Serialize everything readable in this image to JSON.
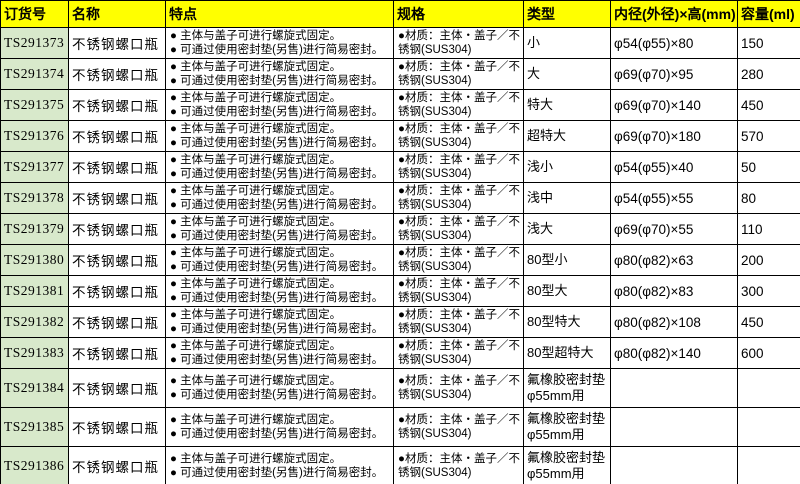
{
  "table": {
    "headers": [
      "订货号",
      "名称",
      "特点",
      "规格",
      "类型",
      "内径(外径)×高(mm)",
      "容量(ml)"
    ],
    "colors": {
      "header_bg": "#FFFF00",
      "order_column_bg": "#D8E9CB",
      "border": "#000000",
      "text": "#000000"
    },
    "rows": [
      {
        "order_no": "TS291373",
        "name": "不锈钢螺口瓶",
        "features": [
          "● 主体与盖子可进行螺旋式固定。",
          "● 可通过使用密封垫(另售)进行简易密封。"
        ],
        "spec": "●材质：主体・盖子／不锈钢(SUS304)",
        "type": "小",
        "dimensions": "φ54(φ55)×80",
        "capacity": "150"
      },
      {
        "order_no": "TS291374",
        "name": "不锈钢螺口瓶",
        "features": [
          "● 主体与盖子可进行螺旋式固定。",
          "● 可通过使用密封垫(另售)进行简易密封。"
        ],
        "spec": "●材质：主体・盖子／不锈钢(SUS304)",
        "type": "大",
        "dimensions": "φ69(φ70)×95",
        "capacity": "280"
      },
      {
        "order_no": "TS291375",
        "name": "不锈钢螺口瓶",
        "features": [
          "● 主体与盖子可进行螺旋式固定。",
          "● 可通过使用密封垫(另售)进行简易密封。"
        ],
        "spec": "●材质：主体・盖子／不锈钢(SUS304)",
        "type": "特大",
        "dimensions": "φ69(φ70)×140",
        "capacity": "450"
      },
      {
        "order_no": "TS291376",
        "name": "不锈钢螺口瓶",
        "features": [
          "● 主体与盖子可进行螺旋式固定。",
          "● 可通过使用密封垫(另售)进行简易密封。"
        ],
        "spec": "●材质：主体・盖子／不锈钢(SUS304)",
        "type": "超特大",
        "dimensions": "φ69(φ70)×180",
        "capacity": "570"
      },
      {
        "order_no": "TS291377",
        "name": "不锈钢螺口瓶",
        "features": [
          "● 主体与盖子可进行螺旋式固定。",
          "● 可通过使用密封垫(另售)进行简易密封。"
        ],
        "spec": "●材质：主体・盖子／不锈钢(SUS304)",
        "type": "浅小",
        "dimensions": "φ54(φ55)×40",
        "capacity": "50"
      },
      {
        "order_no": "TS291378",
        "name": "不锈钢螺口瓶",
        "features": [
          "● 主体与盖子可进行螺旋式固定。",
          "● 可通过使用密封垫(另售)进行简易密封。"
        ],
        "spec": "●材质：主体・盖子／不锈钢(SUS304)",
        "type": "浅中",
        "dimensions": "φ54(φ55)×55",
        "capacity": "80"
      },
      {
        "order_no": "TS291379",
        "name": "不锈钢螺口瓶",
        "features": [
          "● 主体与盖子可进行螺旋式固定。",
          "● 可通过使用密封垫(另售)进行简易密封。"
        ],
        "spec": "●材质：主体・盖子／不锈钢(SUS304)",
        "type": "浅大",
        "dimensions": "φ69(φ70)×55",
        "capacity": "110"
      },
      {
        "order_no": "TS291380",
        "name": "不锈钢螺口瓶",
        "features": [
          "● 主体与盖子可进行螺旋式固定。",
          "● 可通过使用密封垫(另售)进行简易密封。"
        ],
        "spec": "●材质：主体・盖子／不锈钢(SUS304)",
        "type": "80型小",
        "dimensions": "φ80(φ82)×63",
        "capacity": "200"
      },
      {
        "order_no": "TS291381",
        "name": "不锈钢螺口瓶",
        "features": [
          "● 主体与盖子可进行螺旋式固定。",
          "● 可通过使用密封垫(另售)进行简易密封。"
        ],
        "spec": "●材质：主体・盖子／不锈钢(SUS304)",
        "type": "80型大",
        "dimensions": "φ80(φ82)×83",
        "capacity": "300"
      },
      {
        "order_no": "TS291382",
        "name": "不锈钢螺口瓶",
        "features": [
          "● 主体与盖子可进行螺旋式固定。",
          "● 可通过使用密封垫(另售)进行简易密封。"
        ],
        "spec": "●材质：主体・盖子／不锈钢(SUS304)",
        "type": "80型特大",
        "dimensions": "φ80(φ82)×108",
        "capacity": "450"
      },
      {
        "order_no": "TS291383",
        "name": "不锈钢螺口瓶",
        "features": [
          "● 主体与盖子可进行螺旋式固定。",
          "● 可通过使用密封垫(另售)进行简易密封。"
        ],
        "spec": "●材质：主体・盖子／不锈钢(SUS304)",
        "type": "80型超特大",
        "dimensions": "φ80(φ82)×140",
        "capacity": "600"
      },
      {
        "order_no": "TS291384",
        "name": "不锈钢螺口瓶",
        "features": [
          "● 主体与盖子可进行螺旋式固定。",
          "● 可通过使用密封垫(另售)进行简易密封。"
        ],
        "spec": "●材质：主体・盖子／不锈钢(SUS304)",
        "type": "氟橡胶密封垫φ55mm用",
        "dimensions": "",
        "capacity": ""
      },
      {
        "order_no": "TS291385",
        "name": "不锈钢螺口瓶",
        "features": [
          "● 主体与盖子可进行螺旋式固定。",
          "● 可通过使用密封垫(另售)进行简易密封。"
        ],
        "spec": "●材质：主体・盖子／不锈钢(SUS304)",
        "type": "氟橡胶密封垫φ55mm用",
        "dimensions": "",
        "capacity": ""
      },
      {
        "order_no": "TS291386",
        "name": "不锈钢螺口瓶",
        "features": [
          "● 主体与盖子可进行螺旋式固定。",
          "● 可通过使用密封垫(另售)进行简易密封。"
        ],
        "spec": "●材质：主体・盖子／不锈钢(SUS304)",
        "type": "氟橡胶密封垫φ55mm用",
        "dimensions": "",
        "capacity": ""
      }
    ]
  }
}
